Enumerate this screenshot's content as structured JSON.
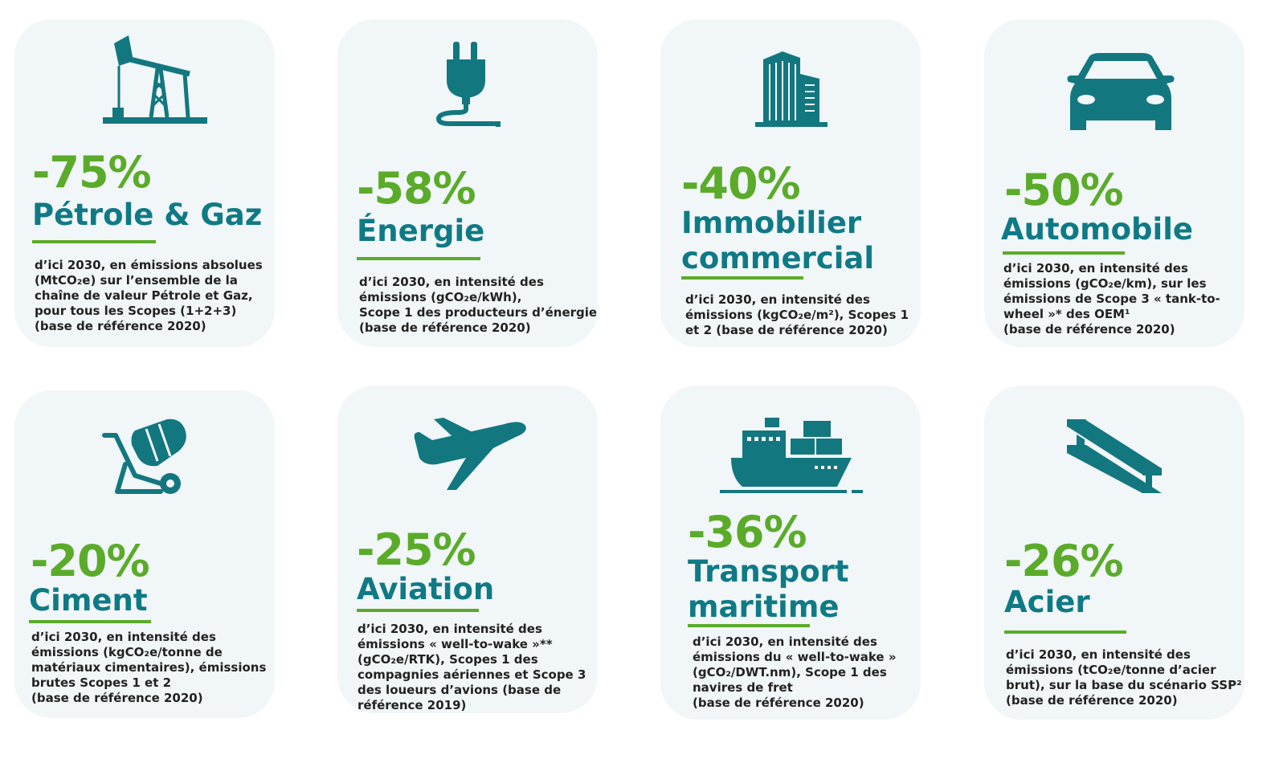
{
  "colors": {
    "accent_green": "#5bab2a",
    "title_teal": "#0f7a86",
    "icon_teal": "#137780",
    "card_bg": "#f1f6f8"
  },
  "cards": [
    {
      "icon": "oil-pump-icon",
      "percent": "-75%",
      "title": "Pétrole & Gaz",
      "description": "d’ici 2030, en émissions absolues\n(MtCO₂e) sur l’ensemble de la\nchaîne de valeur Pétrole et Gaz,\npour tous les Scopes (1+2+3)\n(base de référence 2020)"
    },
    {
      "icon": "plug-icon",
      "percent": "-58%",
      "title": "Énergie",
      "description": "d’ici 2030, en intensité des\némissions (gCO₂e/kWh),\nScope 1 des producteurs d’énergie\n(base de référence 2020)"
    },
    {
      "icon": "buildings-icon",
      "percent": "-40%",
      "title": "Immobilier\ncommercial",
      "description": "d’ici 2030, en intensité des\némissions (kgCO₂e/m²), Scopes 1\net 2 (base de référence 2020)"
    },
    {
      "icon": "car-icon",
      "percent": "-50%",
      "title": "Automobile",
      "description": "d’ici 2030, en intensité des\némissions (gCO₂e/km), sur les\némissions de Scope 3 « tank-to-\nwheel »* des OEM¹\n(base de référence 2020)"
    },
    {
      "icon": "cement-mixer-icon",
      "percent": "-20%",
      "title": "Ciment",
      "description": "d’ici 2030, en intensité des\némissions (kgCO₂e/tonne de\nmatériaux cimentaires), émissions\nbrutes Scopes 1 et 2\n(base de référence 2020)"
    },
    {
      "icon": "airplane-icon",
      "percent": "-25%",
      "title": "Aviation",
      "description": "d’ici 2030, en intensité des\némissions « well-to-wake »**\n(gCO₂e/RTK), Scopes 1 des\ncompagnies aériennes et Scope 3\ndes loueurs d’avions (base de\nréférence 2019)"
    },
    {
      "icon": "cargo-ship-icon",
      "percent": "-36%",
      "title": "Transport\nmaritime",
      "description": "d’ici 2030, en intensité des\némissions du « well-to-wake »\n(gCO₂/DWT.nm), Scope 1 des\nnavires de fret\n(base de référence 2020)"
    },
    {
      "icon": "steel-beam-icon",
      "percent": "-26%",
      "title": "Acier",
      "description": "d’ici 2030, en intensité des\némissions (tCO₂e/tonne d’acier\nbrut), sur la base du scénario SSP²\n(base de référence 2020)"
    }
  ]
}
